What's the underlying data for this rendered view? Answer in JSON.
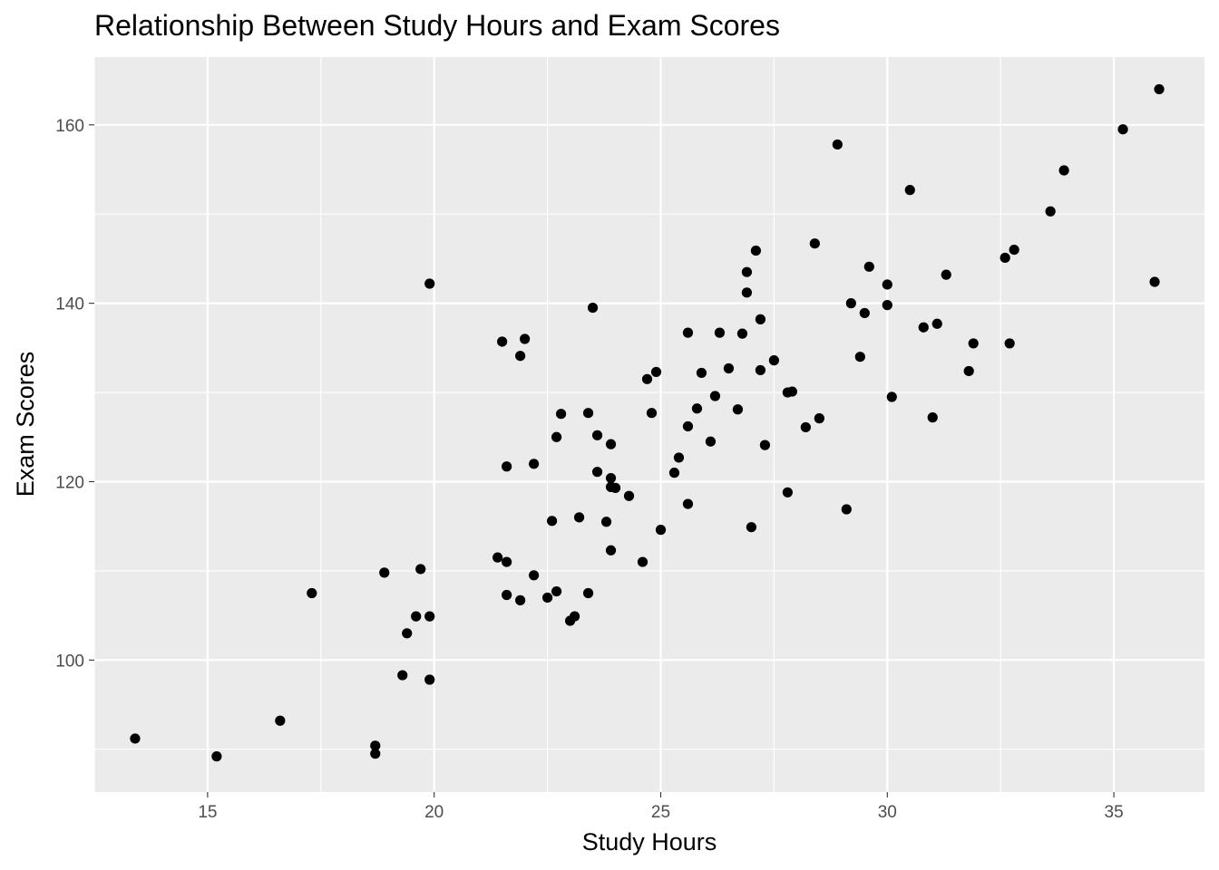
{
  "chart_data": {
    "type": "scatter",
    "title": "Relationship Between Study Hours and Exam Scores",
    "xlabel": "Study Hours",
    "ylabel": "Exam Scores",
    "xlim": [
      12.5,
      37.0
    ],
    "ylim": [
      85.2,
      167.6
    ],
    "x_ticks": [
      15,
      20,
      25,
      30,
      35
    ],
    "y_ticks": [
      100,
      120,
      140,
      160
    ],
    "grid": true,
    "legend": "none",
    "colors": {
      "panel": "#ebebeb",
      "grid": "#ffffff",
      "point": "#000000",
      "tick_text": "#4d4d4d"
    },
    "points": [
      {
        "x": 13.4,
        "y": 91.2
      },
      {
        "x": 15.2,
        "y": 89.2
      },
      {
        "x": 16.6,
        "y": 93.2
      },
      {
        "x": 17.3,
        "y": 107.5
      },
      {
        "x": 18.7,
        "y": 90.4
      },
      {
        "x": 18.7,
        "y": 89.5
      },
      {
        "x": 18.9,
        "y": 109.8
      },
      {
        "x": 19.3,
        "y": 98.3
      },
      {
        "x": 19.4,
        "y": 103.0
      },
      {
        "x": 19.6,
        "y": 104.9
      },
      {
        "x": 19.7,
        "y": 110.2
      },
      {
        "x": 19.9,
        "y": 104.9
      },
      {
        "x": 19.9,
        "y": 97.8
      },
      {
        "x": 19.9,
        "y": 142.2
      },
      {
        "x": 21.4,
        "y": 111.5
      },
      {
        "x": 21.5,
        "y": 135.7
      },
      {
        "x": 21.6,
        "y": 121.7
      },
      {
        "x": 21.6,
        "y": 111.0
      },
      {
        "x": 21.6,
        "y": 107.3
      },
      {
        "x": 21.9,
        "y": 106.7
      },
      {
        "x": 21.9,
        "y": 134.1
      },
      {
        "x": 22.0,
        "y": 136.0
      },
      {
        "x": 22.2,
        "y": 109.5
      },
      {
        "x": 22.2,
        "y": 122.0
      },
      {
        "x": 22.5,
        "y": 107.0
      },
      {
        "x": 22.6,
        "y": 115.6
      },
      {
        "x": 22.7,
        "y": 107.7
      },
      {
        "x": 22.7,
        "y": 125.0
      },
      {
        "x": 22.8,
        "y": 127.6
      },
      {
        "x": 23.0,
        "y": 104.4
      },
      {
        "x": 23.1,
        "y": 104.9
      },
      {
        "x": 23.2,
        "y": 116.0
      },
      {
        "x": 23.4,
        "y": 107.5
      },
      {
        "x": 23.4,
        "y": 127.7
      },
      {
        "x": 23.5,
        "y": 139.5
      },
      {
        "x": 23.6,
        "y": 125.2
      },
      {
        "x": 23.6,
        "y": 121.1
      },
      {
        "x": 23.8,
        "y": 115.5
      },
      {
        "x": 23.9,
        "y": 124.2
      },
      {
        "x": 23.9,
        "y": 120.4
      },
      {
        "x": 23.9,
        "y": 119.4
      },
      {
        "x": 23.9,
        "y": 112.3
      },
      {
        "x": 24.0,
        "y": 119.3
      },
      {
        "x": 24.3,
        "y": 118.4
      },
      {
        "x": 24.6,
        "y": 111.0
      },
      {
        "x": 24.7,
        "y": 131.5
      },
      {
        "x": 24.8,
        "y": 127.7
      },
      {
        "x": 24.9,
        "y": 132.3
      },
      {
        "x": 25.0,
        "y": 114.6
      },
      {
        "x": 25.3,
        "y": 121.0
      },
      {
        "x": 25.4,
        "y": 122.7
      },
      {
        "x": 25.6,
        "y": 126.2
      },
      {
        "x": 25.6,
        "y": 136.7
      },
      {
        "x": 25.6,
        "y": 117.5
      },
      {
        "x": 25.8,
        "y": 128.2
      },
      {
        "x": 25.9,
        "y": 132.2
      },
      {
        "x": 26.1,
        "y": 124.5
      },
      {
        "x": 26.2,
        "y": 129.6
      },
      {
        "x": 26.3,
        "y": 136.7
      },
      {
        "x": 26.5,
        "y": 132.7
      },
      {
        "x": 26.7,
        "y": 128.1
      },
      {
        "x": 26.8,
        "y": 136.6
      },
      {
        "x": 26.9,
        "y": 141.2
      },
      {
        "x": 26.9,
        "y": 143.5
      },
      {
        "x": 27.0,
        "y": 114.9
      },
      {
        "x": 27.1,
        "y": 145.9
      },
      {
        "x": 27.2,
        "y": 132.5
      },
      {
        "x": 27.2,
        "y": 138.2
      },
      {
        "x": 27.3,
        "y": 124.1
      },
      {
        "x": 27.5,
        "y": 133.6
      },
      {
        "x": 27.8,
        "y": 130.0
      },
      {
        "x": 27.8,
        "y": 118.8
      },
      {
        "x": 27.9,
        "y": 130.1
      },
      {
        "x": 28.2,
        "y": 126.1
      },
      {
        "x": 28.4,
        "y": 146.7
      },
      {
        "x": 28.5,
        "y": 127.1
      },
      {
        "x": 28.9,
        "y": 157.8
      },
      {
        "x": 29.1,
        "y": 116.9
      },
      {
        "x": 29.2,
        "y": 140.0
      },
      {
        "x": 29.4,
        "y": 134.0
      },
      {
        "x": 29.5,
        "y": 138.9
      },
      {
        "x": 29.6,
        "y": 144.1
      },
      {
        "x": 30.0,
        "y": 142.1
      },
      {
        "x": 30.0,
        "y": 139.8
      },
      {
        "x": 30.1,
        "y": 129.5
      },
      {
        "x": 30.5,
        "y": 152.7
      },
      {
        "x": 30.8,
        "y": 137.3
      },
      {
        "x": 31.0,
        "y": 127.2
      },
      {
        "x": 31.1,
        "y": 137.7
      },
      {
        "x": 31.3,
        "y": 143.2
      },
      {
        "x": 31.8,
        "y": 132.4
      },
      {
        "x": 31.9,
        "y": 135.5
      },
      {
        "x": 32.6,
        "y": 145.1
      },
      {
        "x": 32.7,
        "y": 135.5
      },
      {
        "x": 32.8,
        "y": 146.0
      },
      {
        "x": 33.6,
        "y": 150.3
      },
      {
        "x": 33.9,
        "y": 154.9
      },
      {
        "x": 35.2,
        "y": 159.5
      },
      {
        "x": 35.9,
        "y": 142.4
      },
      {
        "x": 36.0,
        "y": 164.0
      }
    ]
  }
}
